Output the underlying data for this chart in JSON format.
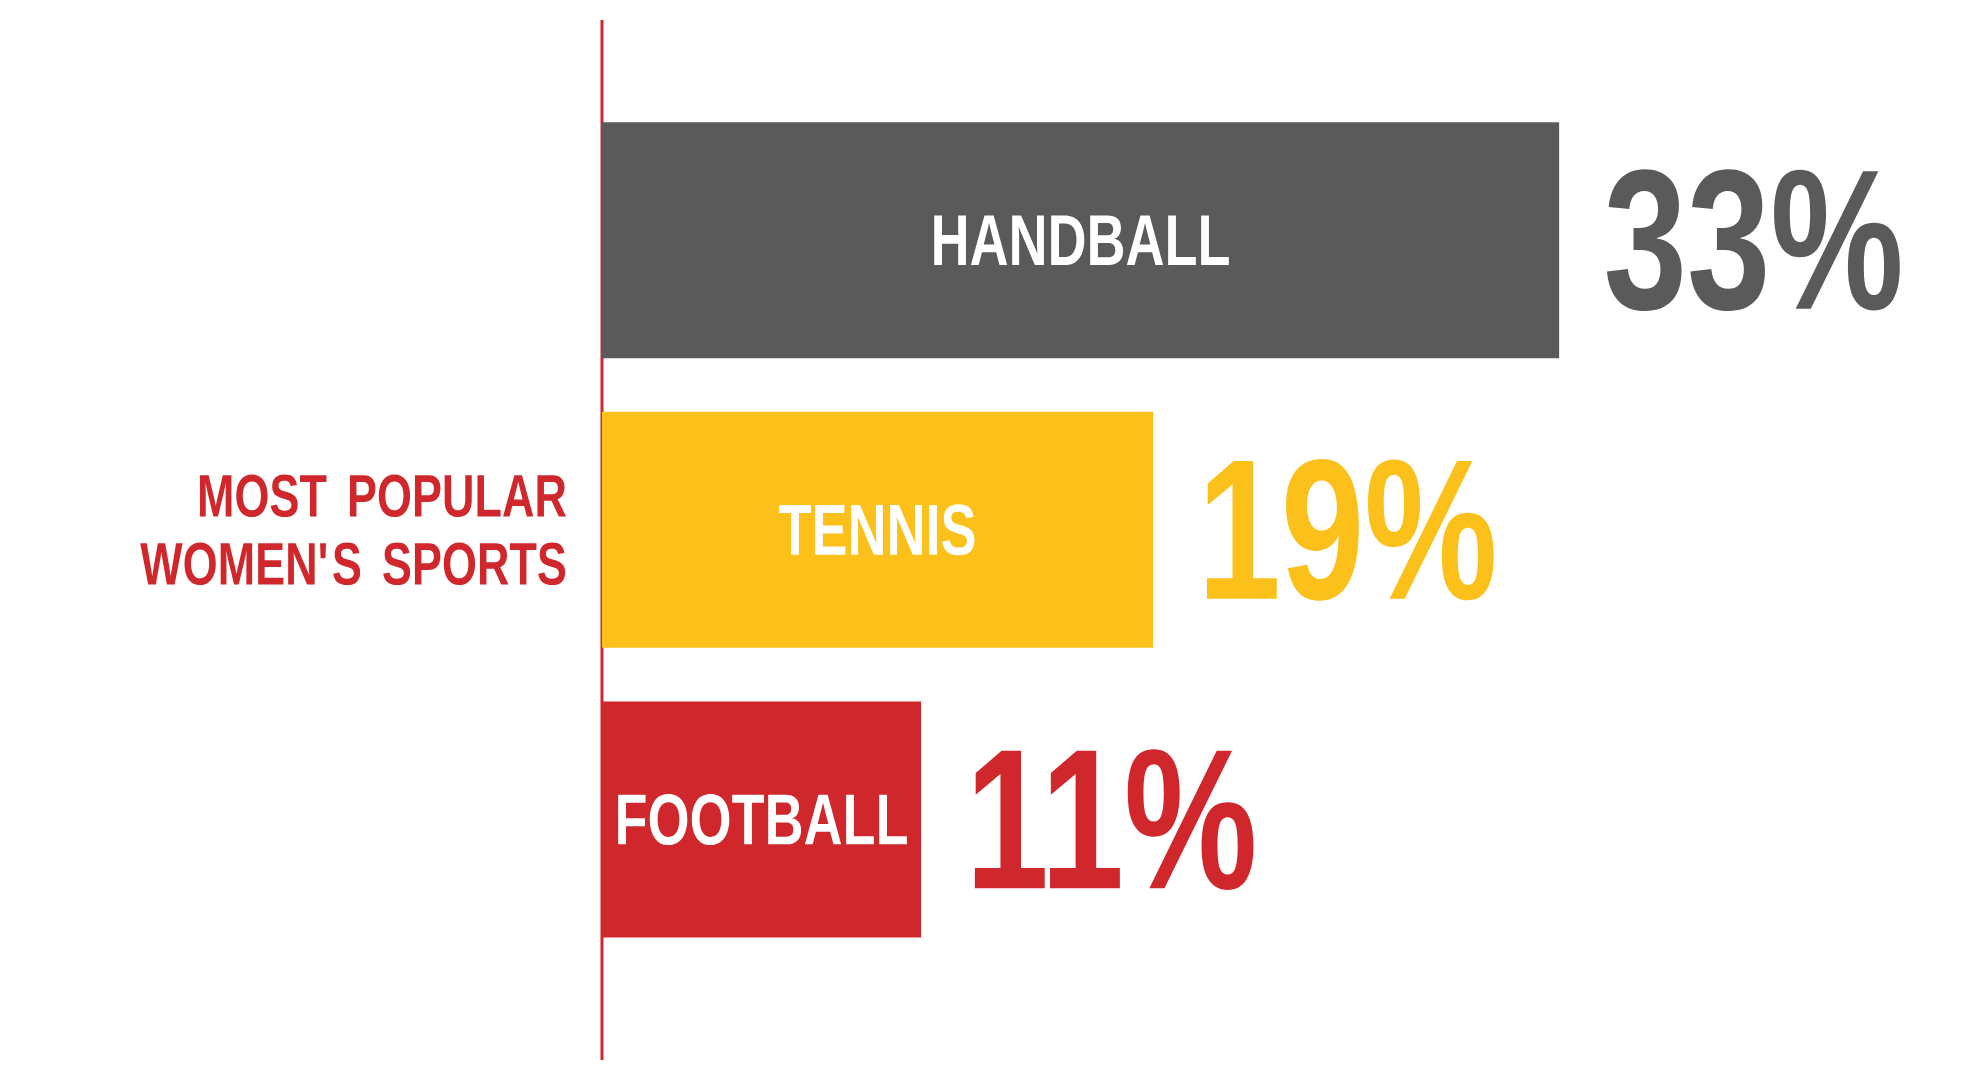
{
  "chart_data": {
    "type": "bar",
    "orientation": "horizontal",
    "title": "MOST POPULAR WOMEN'S SPORTS",
    "categories": [
      "HANDBALL",
      "TENNIS",
      "FOOTBALL"
    ],
    "values": [
      33,
      19,
      11
    ],
    "colors": [
      "#5a5a5a",
      "#fcc01a",
      "#d0272d"
    ],
    "value_labels": [
      "33%",
      "19%",
      "11%"
    ]
  }
}
